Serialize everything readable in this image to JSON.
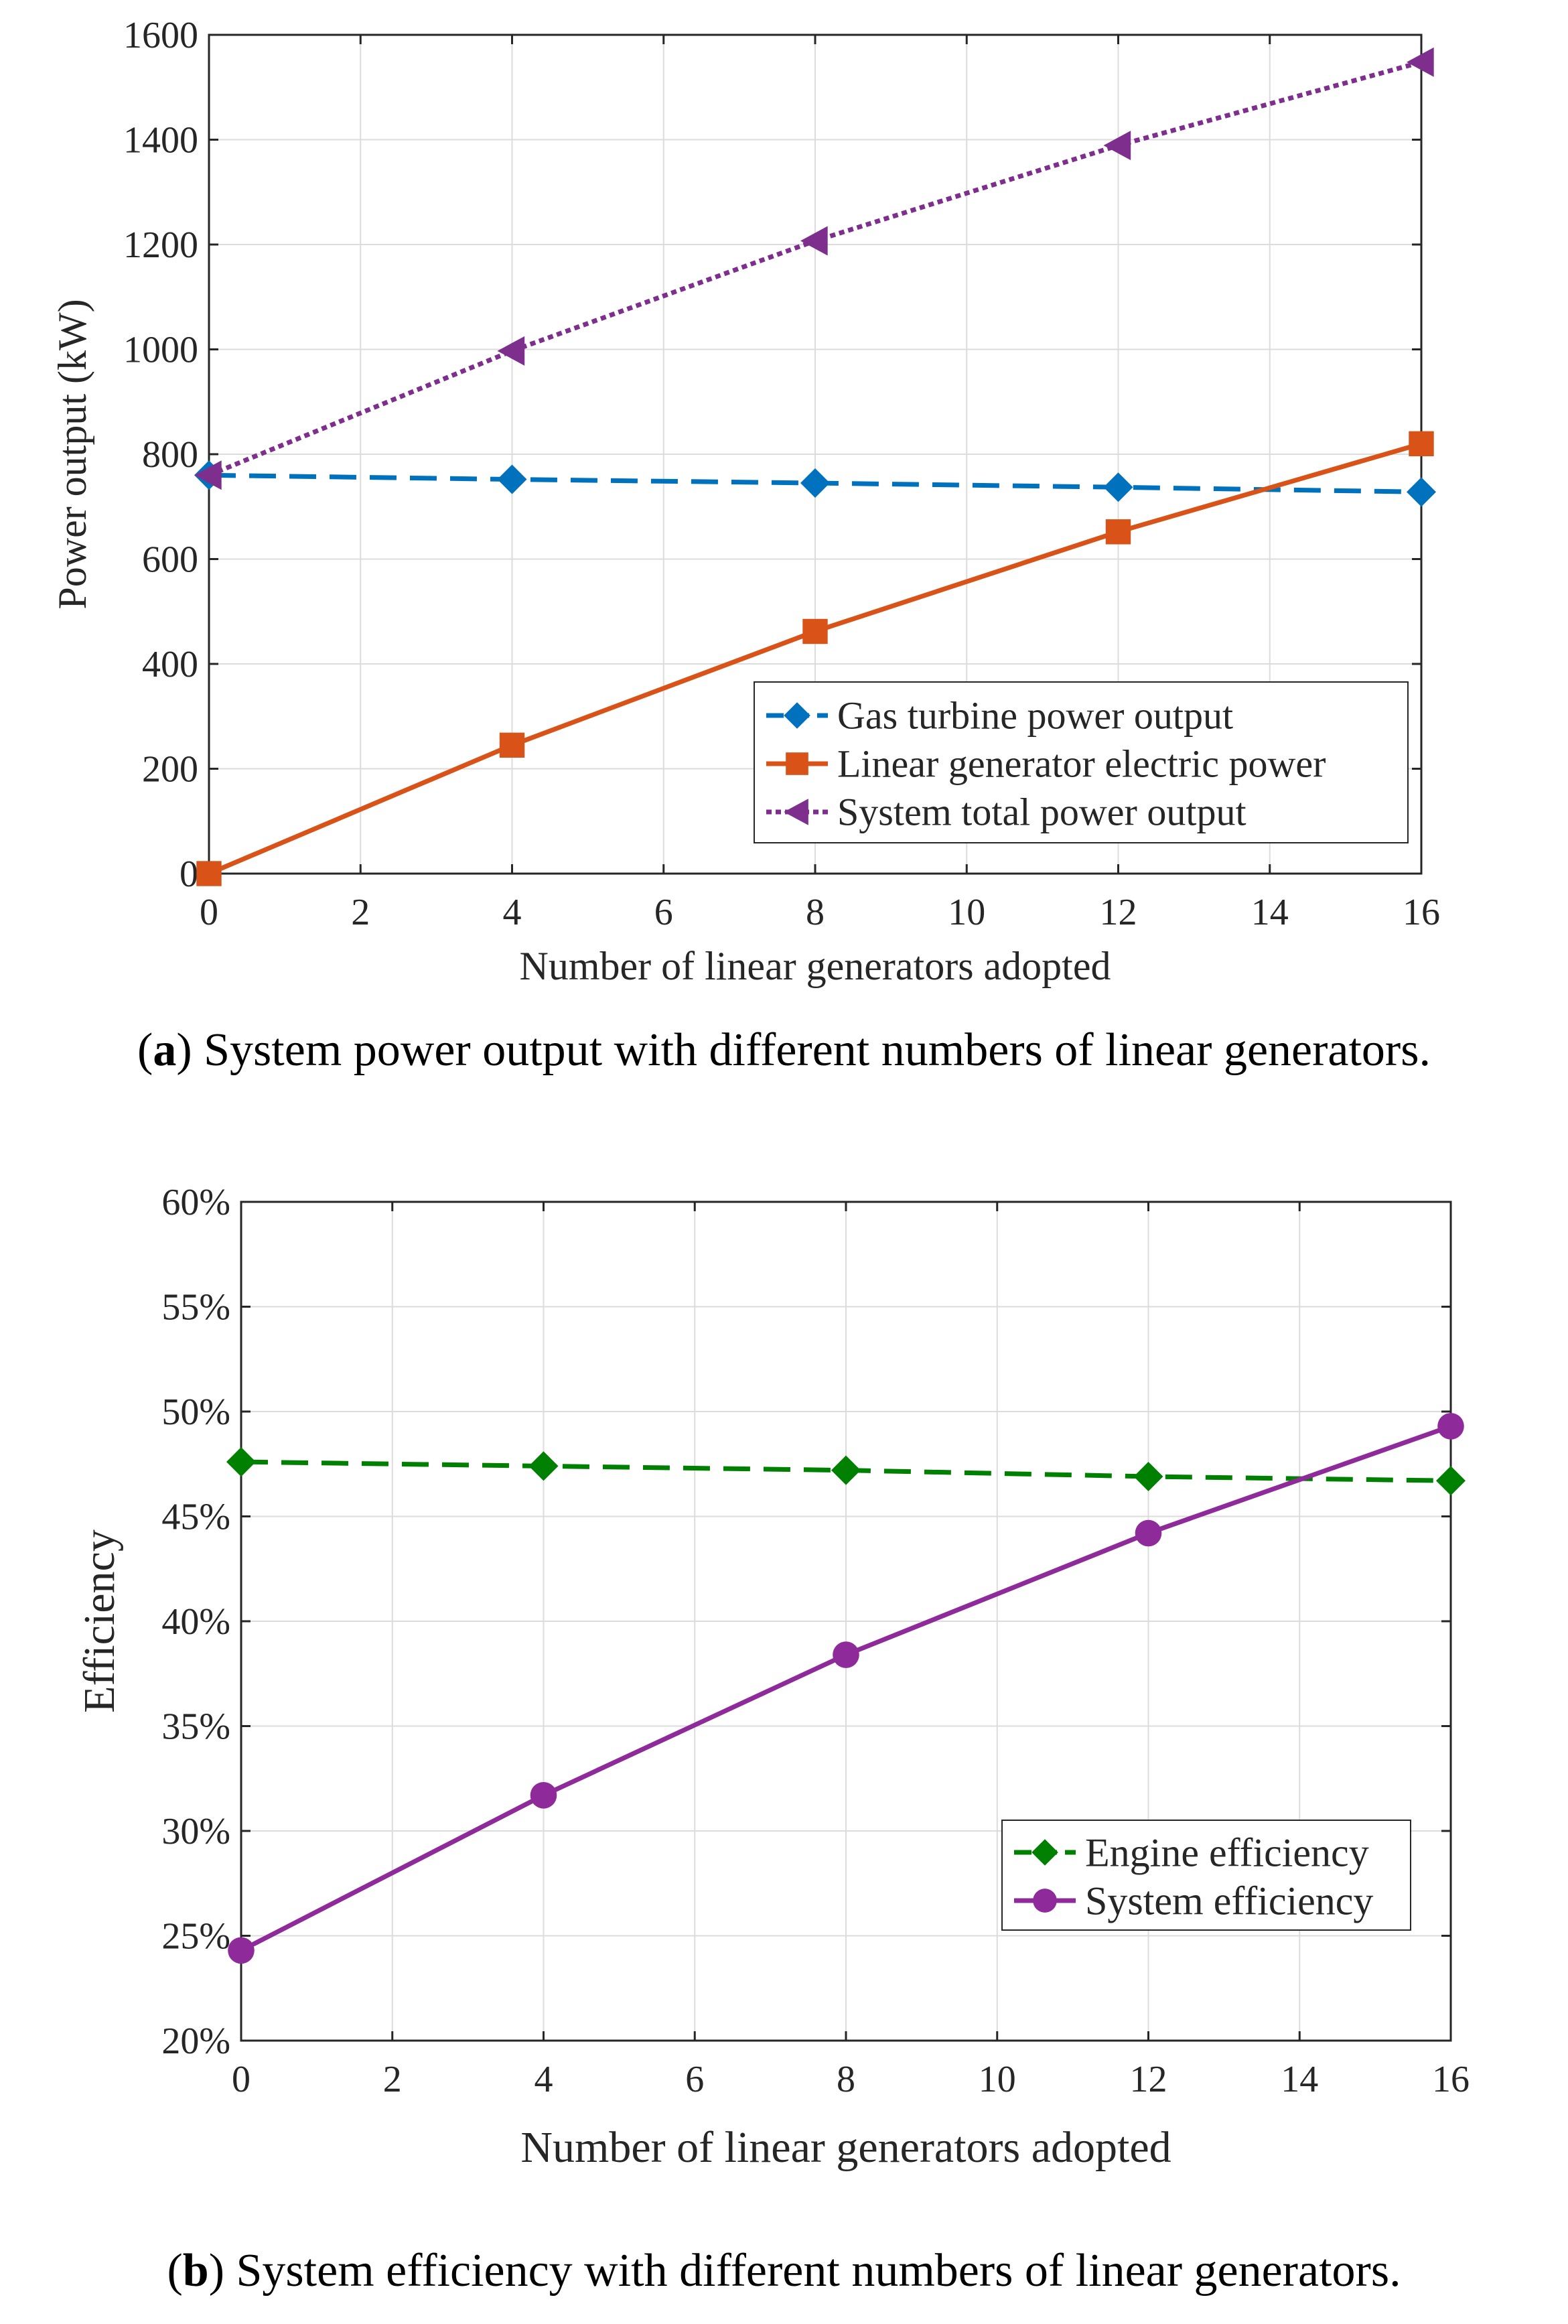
{
  "chart_data": [
    {
      "type": "line",
      "xlabel": "Number of linear generators adopted",
      "ylabel": "Power output (kW)",
      "xlim": [
        0,
        16
      ],
      "ylim": [
        0,
        1600
      ],
      "xticks": [
        "0",
        "2",
        "4",
        "6",
        "8",
        "10",
        "12",
        "14",
        "16"
      ],
      "yticks": [
        "0",
        "200",
        "400",
        "600",
        "800",
        "1000",
        "1200",
        "1400",
        "1600"
      ],
      "grid": true,
      "legend_position": "bottom-right",
      "x": [
        0,
        4,
        8,
        12,
        16
      ],
      "series": [
        {
          "name": "Gas turbine power output",
          "values": [
            760,
            752,
            745,
            737,
            728
          ],
          "color": "#0072BD",
          "style": "dashed",
          "marker": "diamond"
        },
        {
          "name": "Linear generator electric power",
          "values": [
            0,
            245,
            462,
            652,
            820
          ],
          "color": "#D95319",
          "style": "solid",
          "marker": "square"
        },
        {
          "name": "System total power output",
          "values": [
            760,
            997,
            1207,
            1389,
            1548
          ],
          "color": "#7E2F8E",
          "style": "dotted",
          "marker": "triangle-left"
        }
      ]
    },
    {
      "type": "line",
      "xlabel": "Number of linear generators adopted",
      "ylabel": "Efficiency",
      "xlim": [
        0,
        16
      ],
      "ylim": [
        20,
        60
      ],
      "xticks": [
        "0",
        "2",
        "4",
        "6",
        "8",
        "10",
        "12",
        "14",
        "16"
      ],
      "yticks": [
        "20%",
        "25%",
        "30%",
        "35%",
        "40%",
        "45%",
        "50%",
        "55%",
        "60%"
      ],
      "grid": true,
      "legend_position": "bottom-right",
      "x": [
        0,
        4,
        8,
        12,
        16
      ],
      "series": [
        {
          "name": "Engine efficiency",
          "values": [
            47.6,
            47.4,
            47.2,
            46.9,
            46.7
          ],
          "color": "#008000",
          "style": "dashed",
          "marker": "diamond"
        },
        {
          "name": "System efficiency",
          "values": [
            24.3,
            31.7,
            38.4,
            44.2,
            49.3
          ],
          "color": "#8E2A9A",
          "style": "solid",
          "marker": "circle"
        }
      ]
    }
  ],
  "captions": {
    "a_label": "a",
    "a_text": "System power output with different numbers of linear generators.",
    "b_label": "b",
    "b_text": "System efficiency with different numbers of linear generators."
  }
}
